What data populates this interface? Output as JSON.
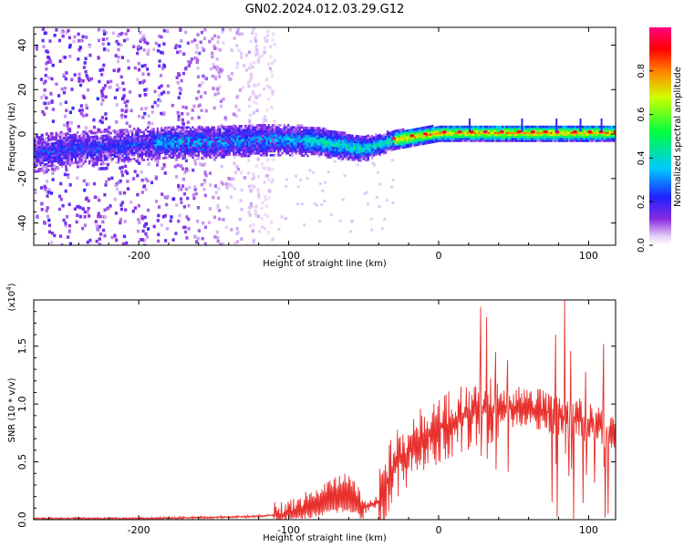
{
  "title": "GN02.2024.012.03.29.G12",
  "colors": {
    "snr_line": "#e8302c",
    "band_core": "#1020ff",
    "band_mid": "#00e0c0",
    "band_hot": "#ff2020",
    "noise": "#8a2be2"
  },
  "chart_data": [
    {
      "type": "heatmap",
      "title": "GN02.2024.012.03.29.G12",
      "xlabel": "Height of straight line (km)",
      "ylabel": "Frequency (Hz)",
      "xlim": [
        -270,
        118
      ],
      "ylim": [
        -50,
        48
      ],
      "x_ticks": [
        -200,
        -100,
        0,
        100
      ],
      "x_tick_labels": [
        "-200",
        "-100",
        "0",
        "100"
      ],
      "y_ticks": [
        -40,
        -20,
        0,
        20,
        40
      ],
      "y_tick_labels": [
        "-40",
        "-20",
        "0",
        "20",
        "40"
      ],
      "colorbar": {
        "label": "Normalized spectral amplitude",
        "range": [
          0,
          1
        ],
        "ticks": [
          0.0,
          0.2,
          0.4,
          0.6,
          0.8
        ],
        "tick_labels": [
          "0.0",
          "0.2",
          "0.4",
          "0.6",
          "0.8"
        ],
        "colormap": "rainbow (white-violet-blue-cyan-green-yellow-red-magenta)"
      },
      "band_center_hz": {
        "x": [
          -270,
          -240,
          -200,
          -180,
          -150,
          -120,
          -100,
          -80,
          -60,
          -50,
          -40,
          -30,
          -20,
          -10,
          0,
          20,
          40,
          60,
          80,
          100,
          118
        ],
        "y": [
          -8,
          -6,
          -4,
          -3,
          -3,
          -2,
          -2,
          -3,
          -5,
          -6,
          -4,
          -2,
          -1,
          0,
          1,
          1,
          1,
          1,
          1,
          1,
          1
        ]
      },
      "band_halfwidth_hz": {
        "x": [
          -270,
          -180,
          -100,
          -50,
          -30,
          0,
          118
        ],
        "y": [
          6,
          5,
          5,
          4,
          3,
          2.5,
          2.5
        ]
      },
      "noise_region_x": [
        -270,
        -110
      ],
      "grid": false
    },
    {
      "type": "line",
      "xlabel": "Height of straight line (km)",
      "ylabel": "SNR (10 * v/v)",
      "y_multiplier": "(x10^4)",
      "y_multiplier_base": "(x10",
      "y_multiplier_exp": "4",
      "xlim": [
        -270,
        118
      ],
      "ylim": [
        0,
        1.9
      ],
      "x_ticks": [
        -200,
        -100,
        0,
        100
      ],
      "x_tick_labels": [
        "-200",
        "-100",
        "0",
        "100"
      ],
      "y_ticks": [
        0.0,
        0.5,
        1.0,
        1.5
      ],
      "y_tick_labels": [
        "0.0",
        "0.5",
        "1.0",
        "1.5"
      ],
      "series": [
        {
          "x": [
            -270,
            -200,
            -150,
            -120,
            -100,
            -90,
            -80,
            -70,
            -60,
            -50,
            -40,
            -30,
            -20,
            -10,
            0,
            10,
            20,
            30,
            40,
            50,
            60,
            70,
            80,
            90,
            100,
            110,
            118
          ],
          "y": [
            0.01,
            0.01,
            0.02,
            0.03,
            0.05,
            0.12,
            0.2,
            0.25,
            0.3,
            0.1,
            0.15,
            0.45,
            0.6,
            0.72,
            0.78,
            0.85,
            0.9,
            0.93,
            0.95,
            0.97,
            0.97,
            0.95,
            0.9,
            0.88,
            0.85,
            0.8,
            0.76
          ]
        }
      ],
      "peaks": [
        {
          "x": 28,
          "y": 1.84
        },
        {
          "x": 32,
          "y": 1.75
        },
        {
          "x": 38,
          "y": 1.45
        },
        {
          "x": 46,
          "y": 1.38
        },
        {
          "x": 78,
          "y": 1.6
        },
        {
          "x": 84,
          "y": 1.9
        },
        {
          "x": 88,
          "y": 1.46
        },
        {
          "x": 98,
          "y": 1.28
        },
        {
          "x": 110,
          "y": 1.52
        }
      ],
      "grid": false
    }
  ]
}
